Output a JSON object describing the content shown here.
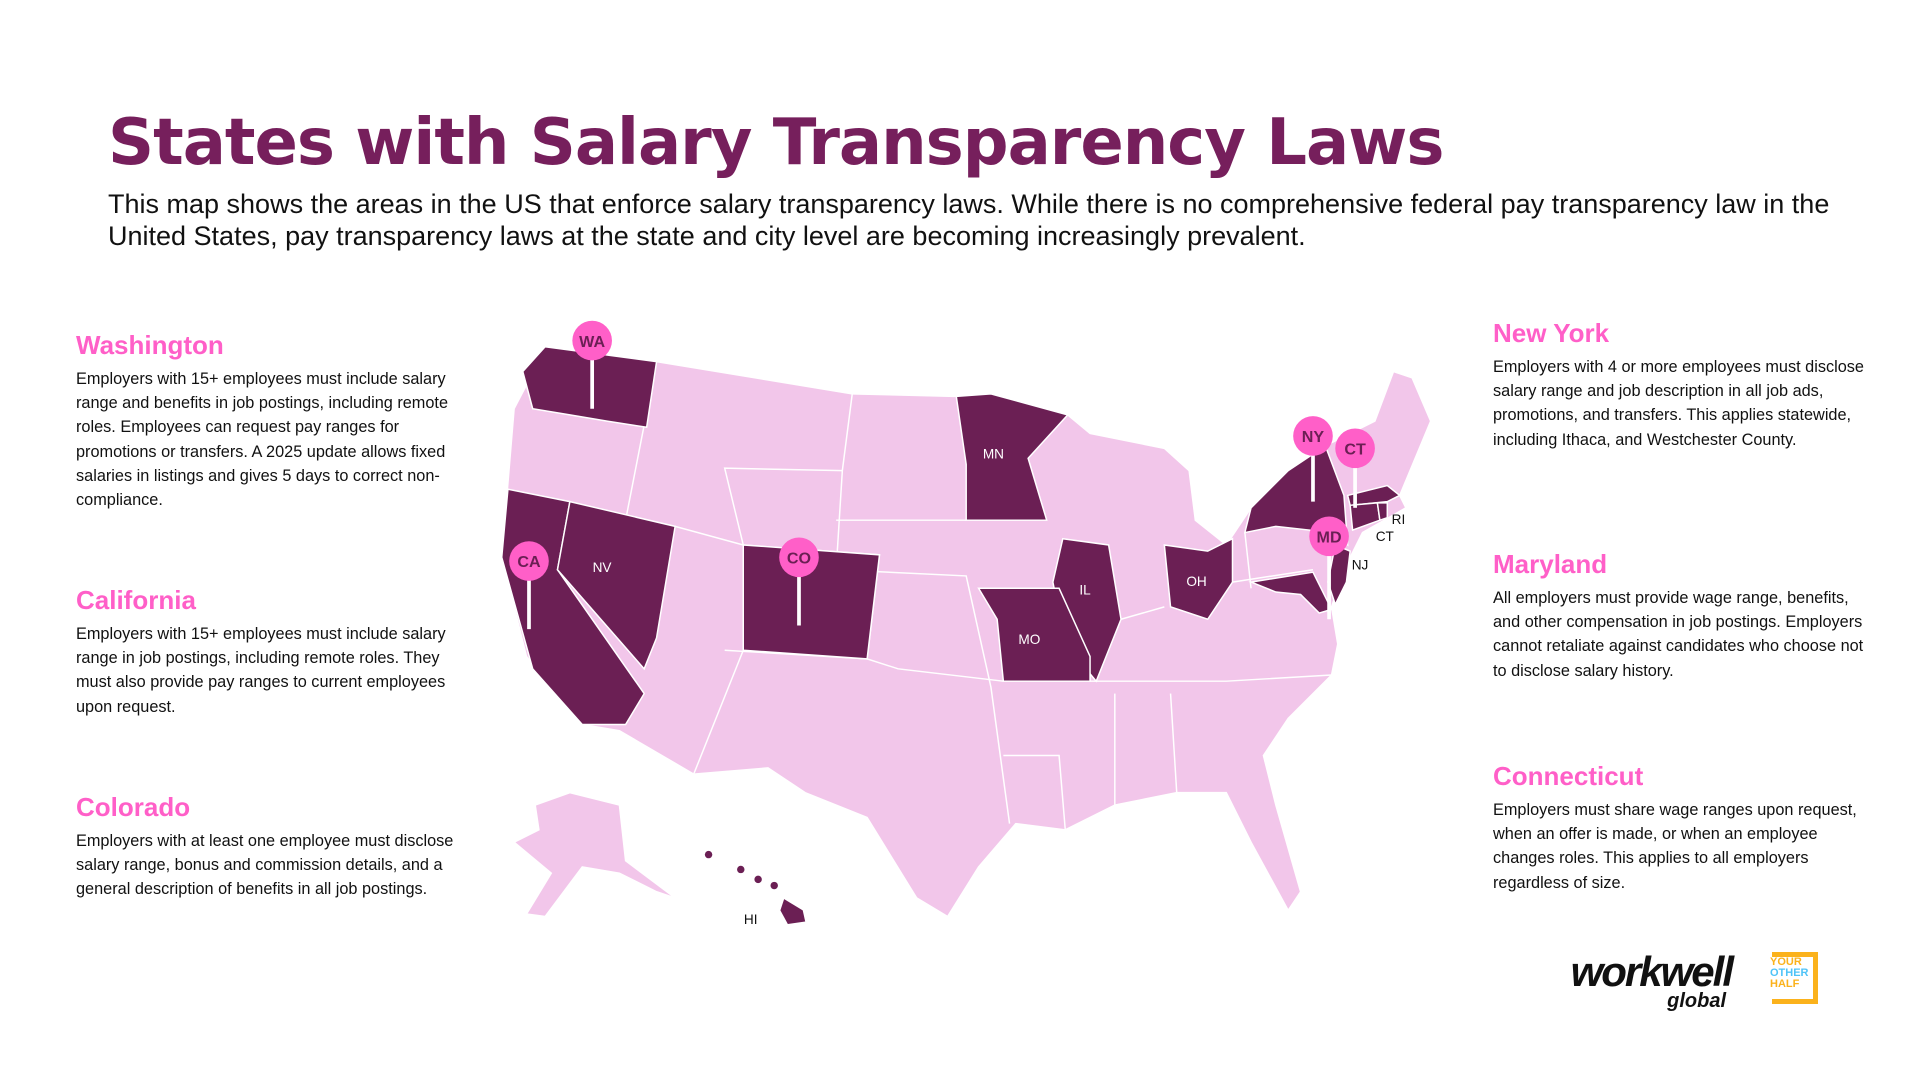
{
  "title": "States with Salary Transparency Laws",
  "subtitle": "This map shows the areas in the US that enforce salary transparency laws. While there is no comprehensive federal pay transparency law in the United States, pay transparency laws at the state and city level are becoming increasingly prevalent.",
  "left_cards": [
    {
      "heading": "Washington",
      "body": "Employers with 15+ employees must include salary range and benefits in job postings, including remote roles. Employees can request pay ranges for promotions or transfers. A 2025 update allows fixed salaries in listings and gives 5 days to correct non-compliance."
    },
    {
      "heading": "California",
      "body": "Employers with 15+ employees must include salary range in job postings, including remote roles. They must also provide pay ranges to current employees upon request."
    },
    {
      "heading": "Colorado",
      "body": "Employers with at least one employee must disclose salary range, bonus and commission details, and a general description of benefits in all job postings."
    }
  ],
  "right_cards": [
    {
      "heading": "New York",
      "body": "Employers with 4 or more employees must disclose  salary range and job description in all job ads, promotions, and transfers. This applies statewide, including Ithaca, and Westchester County."
    },
    {
      "heading": "Maryland",
      "body": "All employers must provide wage range, benefits, and other compensation in job postings. Employers cannot retaliate against candidates who choose not to disclose salary history."
    },
    {
      "heading": "Connecticut",
      "body": "Employers must share wage ranges upon request, when an offer is made, or when an employee changes roles. This applies to all employers regardless of size."
    }
  ],
  "map": {
    "pins": [
      "WA",
      "CA",
      "CO",
      "NY",
      "CT",
      "MD"
    ],
    "state_labels": {
      "NV": "NV",
      "MN": "MN",
      "IL": "IL",
      "MO": "MO",
      "OH": "OH",
      "RI": "RI",
      "CT": "CT",
      "NJ": "NJ",
      "HI": "HI"
    },
    "colors": {
      "law_state": "#6b1f54",
      "other_state": "#f2c6ea",
      "pin": "#ff5fc8"
    }
  },
  "logos": {
    "workwell_main": "workwell",
    "workwell_sub": "global",
    "yoh": [
      "YOUR",
      "OTHER",
      "HALF"
    ]
  }
}
